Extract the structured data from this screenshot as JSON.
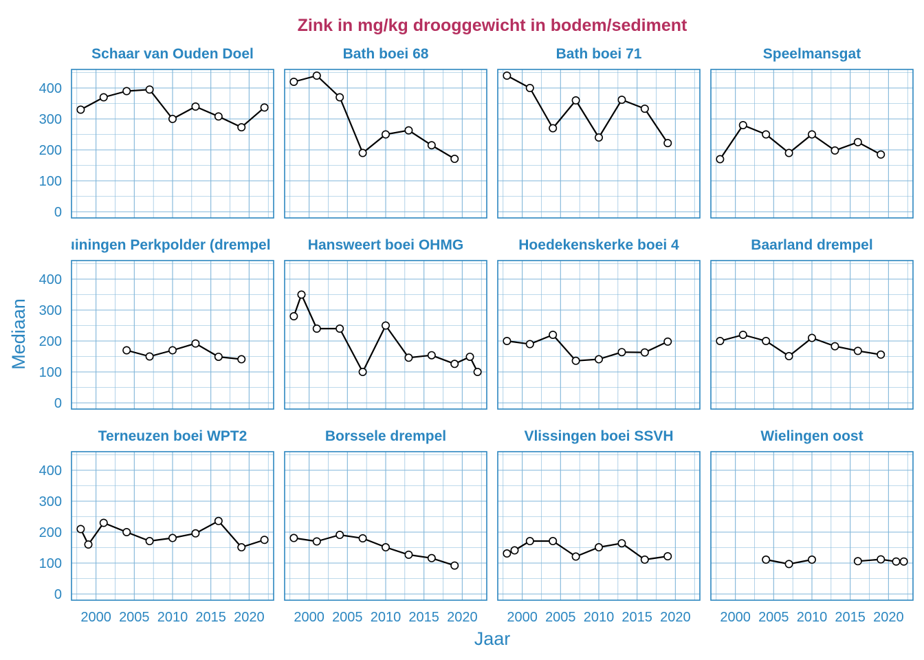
{
  "title": "Zink in mg/kg drooggewicht in bodem/sediment",
  "xlabel": "Jaar",
  "ylabel": "Mediaan",
  "colors": {
    "title": "#b5305f",
    "accent": "#2b86c0",
    "panel_border": "#2b86c0",
    "grid": "#7fb5d8",
    "line": "#000000",
    "point_fill": "#ffffff"
  },
  "chart_data": {
    "type": "line",
    "facet_layout": "4 columns x 3 rows",
    "xlim": [
      1996.8,
      2023.2
    ],
    "ylim": [
      -20,
      460
    ],
    "x_ticks": [
      2000,
      2005,
      2010,
      2015,
      2020
    ],
    "y_ticks": [
      0,
      100,
      200,
      300,
      400
    ],
    "grid": true,
    "panels": [
      {
        "name": "Schaar van Ouden Doel",
        "x": [
          1998,
          2001,
          2004,
          2007,
          2010,
          2013,
          2016,
          2019,
          2022
        ],
        "y": [
          330,
          370,
          390,
          395,
          300,
          340,
          308,
          273,
          337
        ]
      },
      {
        "name": "Bath boei 68",
        "x": [
          1998,
          2001,
          2004,
          2007,
          2010,
          2013,
          2016,
          2019
        ],
        "y": [
          420,
          440,
          370,
          190,
          250,
          263,
          215,
          171
        ]
      },
      {
        "name": "Bath boei 71",
        "x": [
          1998,
          2001,
          2004,
          2007,
          2010,
          2013,
          2016,
          2019
        ],
        "y": [
          440,
          400,
          270,
          360,
          240,
          362,
          333,
          222
        ]
      },
      {
        "name": "Speelmansgat",
        "x": [
          1998,
          2001,
          2004,
          2007,
          2010,
          2013,
          2016,
          2019
        ],
        "y": [
          170,
          280,
          250,
          190,
          250,
          198,
          225,
          185
        ]
      },
      {
        "name": "Hansweert boei OHMG",
        "x": [
          1998,
          1999,
          2001,
          2004,
          2007,
          2010,
          2013,
          2016,
          2019,
          2021,
          2022
        ],
        "y": [
          280,
          350,
          240,
          240,
          100,
          250,
          146,
          154,
          126,
          149,
          100
        ]
      },
      {
        "name": "Hoedekenskerke boei 4",
        "x": [
          1998,
          2001,
          2004,
          2007,
          2010,
          2013,
          2016,
          2019
        ],
        "y": [
          200,
          190,
          220,
          136,
          141,
          164,
          163,
          198
        ]
      },
      {
        "name": "Baarland drempel",
        "x": [
          1998,
          2001,
          2004,
          2007,
          2010,
          2013,
          2016,
          2019
        ],
        "y": [
          200,
          220,
          200,
          151,
          210,
          183,
          168,
          156
        ]
      },
      {
        "name": "Terneuzen boei WPT2",
        "x": [
          1998,
          1999,
          2001,
          2004,
          2007,
          2010,
          2013,
          2016,
          2019,
          2022
        ],
        "y": [
          210,
          160,
          230,
          200,
          171,
          181,
          196,
          236,
          151,
          175
        ]
      },
      {
        "name": "Borssele drempel",
        "x": [
          1998,
          2001,
          2004,
          2007,
          2010,
          2013,
          2016,
          2019
        ],
        "y": [
          181,
          170,
          191,
          180,
          151,
          127,
          116,
          92
        ]
      },
      {
        "name": "Vlissingen boei SSVH",
        "x": [
          1998,
          1999,
          2001,
          2004,
          2007,
          2010,
          2013,
          2016,
          2019
        ],
        "y": [
          131,
          141,
          171,
          171,
          121,
          151,
          164,
          111,
          122
        ]
      },
      {
        "name": "Wielingen oost",
        "segments": [
          {
            "x": [
              2004,
              2007,
              2010
            ],
            "y": [
              111,
              97,
              111
            ]
          },
          {
            "x": [
              2016,
              2019,
              2021,
              2022
            ],
            "y": [
              106,
              112,
              105,
              105
            ]
          }
        ]
      }
    ],
    "clipped_panel": {
      "visible_label": "uiningen Perkpolder (drempel",
      "x": [
        2004,
        2007,
        2010,
        2013,
        2016,
        2019
      ],
      "y": [
        170,
        150,
        170,
        192,
        149,
        141
      ]
    }
  }
}
